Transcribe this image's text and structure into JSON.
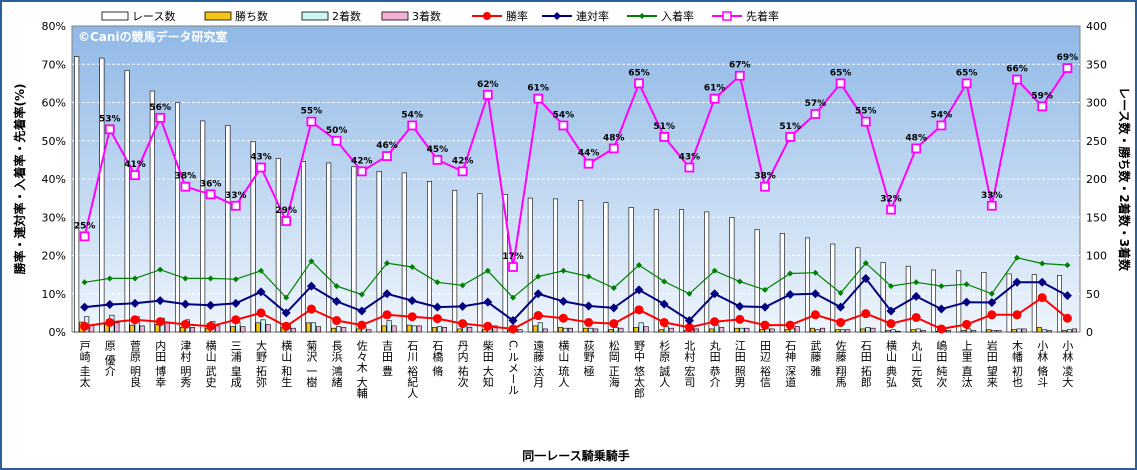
{
  "chart_data": {
    "type": "bar",
    "watermark": "©Caniの競馬データ研究室",
    "xlabel": "同一レース騎乗騎手",
    "ylabel_left": "勝率・連対率・入着率・先着率(%)",
    "ylabel_right": "レース数・勝ち数・2着数・3着数",
    "ylim_left": [
      0,
      80
    ],
    "ylim_right": [
      0,
      400
    ],
    "yticks_left": [
      "0%",
      "10%",
      "20%",
      "30%",
      "40%",
      "50%",
      "60%",
      "70%",
      "80%"
    ],
    "yticks_right": [
      "0",
      "50",
      "100",
      "150",
      "200",
      "250",
      "300",
      "350",
      "400"
    ],
    "legend": [
      {
        "name": "レース数",
        "kind": "bar",
        "color": "#ffffff"
      },
      {
        "name": "勝ち数",
        "kind": "bar",
        "color": "#f5c518"
      },
      {
        "name": "2着数",
        "kind": "bar",
        "color": "#ccf5f5"
      },
      {
        "name": "3着数",
        "kind": "bar",
        "color": "#f5b0d8"
      },
      {
        "name": "勝率",
        "kind": "line",
        "color": "#ff0000"
      },
      {
        "name": "連対率",
        "kind": "line",
        "color": "#000080"
      },
      {
        "name": "入着率",
        "kind": "line",
        "color": "#008000"
      },
      {
        "name": "先着率",
        "kind": "line",
        "color": "#ff00ff"
      }
    ],
    "categories": [
      "戸崎 圭太",
      "原 優介",
      "菅原 明良",
      "内田 博幸",
      "津村 明秀",
      "横山 武史",
      "三浦 皇成",
      "大野 拓弥",
      "横山 和生",
      "菊沢 一樹",
      "長浜 鴻緒",
      "佐々木 大輔",
      "吉田 豊",
      "石川 裕紀人",
      "石橋 脩",
      "丹内 祐次",
      "柴田 大知",
      "C.ルメール",
      "遠藤 汰月",
      "横山 琉人",
      "荻野 極",
      "松岡 正海",
      "野中 悠太郎",
      "杉原 誠人",
      "北村 宏司",
      "丸田 恭介",
      "江田 照男",
      "田辺 裕信",
      "石神 深道",
      "武藤 雅",
      "佐藤 翔馬",
      "石田 拓郎",
      "横山 典弘",
      "丸山 元気",
      "嶋田 純次",
      "上里 直汰",
      "岩田 望来",
      "木幡 初也",
      "小林 脩斗",
      "小林 凌大"
    ],
    "series": [
      {
        "name": "レース数",
        "axis": "right",
        "values": [
          360,
          358,
          342,
          315,
          300,
          276,
          270,
          249,
          227,
          223,
          221,
          216,
          210,
          208,
          197,
          185,
          181,
          180,
          175,
          174,
          172,
          169,
          163,
          160,
          160,
          157,
          150,
          134,
          129,
          123,
          115,
          110,
          91,
          86,
          81,
          80,
          78,
          76,
          75,
          74
        ]
      },
      {
        "name": "勝ち数",
        "axis": "right",
        "values": [
          13,
          10,
          9,
          10,
          6,
          5,
          7,
          12,
          6,
          12,
          5,
          4,
          8,
          9,
          6,
          4,
          3,
          2,
          8,
          6,
          5,
          3,
          6,
          3,
          2,
          4,
          5,
          3,
          3,
          5,
          3,
          4,
          2,
          3,
          1,
          2,
          3,
          3,
          6,
          2
        ]
      },
      {
        "name": "2着数",
        "axis": "right",
        "values": [
          20,
          22,
          20,
          18,
          16,
          14,
          13,
          16,
          9,
          12,
          7,
          7,
          15,
          8,
          7,
          8,
          8,
          4,
          12,
          5,
          5,
          6,
          12,
          7,
          6,
          9,
          5,
          4,
          5,
          3,
          3,
          6,
          3,
          4,
          3,
          4,
          2,
          4,
          3,
          3
        ]
      },
      {
        "name": "3着数",
        "axis": "right",
        "values": [
          9,
          12,
          8,
          13,
          6,
          8,
          7,
          10,
          5,
          7,
          6,
          3,
          8,
          8,
          6,
          6,
          8,
          3,
          4,
          5,
          4,
          5,
          7,
          5,
          4,
          6,
          5,
          4,
          7,
          5,
          3,
          5,
          1,
          2,
          2,
          2,
          2,
          4,
          2,
          4
        ]
      },
      {
        "name": "勝率",
        "axis": "left",
        "values": [
          1.5,
          2.5,
          3.2,
          2.7,
          2.0,
          1.5,
          3.2,
          5.0,
          1.5,
          6.0,
          3.0,
          1.8,
          4.5,
          4.0,
          3.5,
          2.2,
          1.5,
          0.8,
          4.3,
          3.6,
          2.5,
          2.2,
          5.8,
          2.5,
          1.2,
          2.7,
          3.3,
          1.8,
          1.8,
          4.5,
          2.5,
          4.8,
          2.2,
          3.8,
          0.8,
          2.0,
          4.5,
          4.5,
          9.0,
          3.6
        ]
      },
      {
        "name": "連対率",
        "axis": "left",
        "values": [
          6.5,
          7.2,
          7.5,
          8.2,
          7.3,
          7.0,
          7.5,
          10.5,
          5.0,
          12.0,
          8.0,
          5.5,
          10.0,
          8.2,
          6.5,
          6.7,
          7.8,
          3.0,
          10.0,
          8.0,
          6.8,
          6.3,
          11.0,
          7.3,
          3.0,
          10.0,
          6.7,
          6.5,
          9.8,
          10.0,
          6.5,
          14.0,
          5.5,
          9.3,
          6.0,
          7.8,
          7.7,
          13.0,
          13.0,
          9.5
        ]
      },
      {
        "name": "入着率",
        "axis": "left",
        "values": [
          13.0,
          14.0,
          14.0,
          16.3,
          14.0,
          14.0,
          13.8,
          16.0,
          9.0,
          18.5,
          12.0,
          9.8,
          18.0,
          17.0,
          13.0,
          12.2,
          16.0,
          9.0,
          14.5,
          16.0,
          14.5,
          11.5,
          17.5,
          13.2,
          10.0,
          16.0,
          13.2,
          11.0,
          15.3,
          15.5,
          10.2,
          18.0,
          12.0,
          13.0,
          12.0,
          12.5,
          10.0,
          19.4,
          17.9,
          17.5
        ]
      },
      {
        "name": "先着率",
        "axis": "left",
        "values": [
          25,
          53,
          41,
          56,
          38,
          36,
          33,
          43,
          29,
          55,
          50,
          42,
          46,
          54,
          45,
          42,
          62,
          17,
          61,
          54,
          44,
          48,
          65,
          51,
          43,
          61,
          67,
          38,
          51,
          57,
          65,
          55,
          32,
          48,
          54,
          65,
          33,
          66,
          59,
          69
        ]
      }
    ]
  }
}
